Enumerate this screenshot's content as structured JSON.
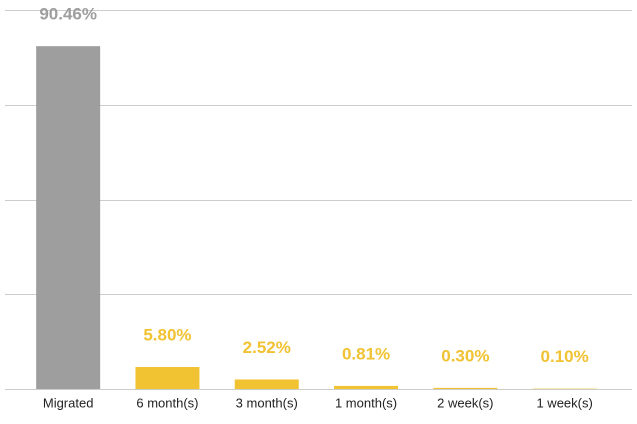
{
  "chart_data": {
    "type": "bar",
    "categories": [
      "Migrated",
      "6 month(s)",
      "3 month(s)",
      "1 month(s)",
      "2 week(s)",
      "1 week(s)"
    ],
    "values": [
      90.46,
      5.8,
      2.52,
      0.81,
      0.3,
      0.1
    ],
    "value_labels": [
      "90.46%",
      "5.80%",
      "2.52%",
      "0.81%",
      "0.30%",
      "0.10%"
    ],
    "colors": [
      "#9e9e9e",
      "#f1c232",
      "#f1c232",
      "#f1c232",
      "#f1c232",
      "#f1c232"
    ],
    "ylim": [
      0,
      100
    ],
    "yticks": [
      0,
      25,
      50,
      75,
      100
    ],
    "grid": true
  }
}
